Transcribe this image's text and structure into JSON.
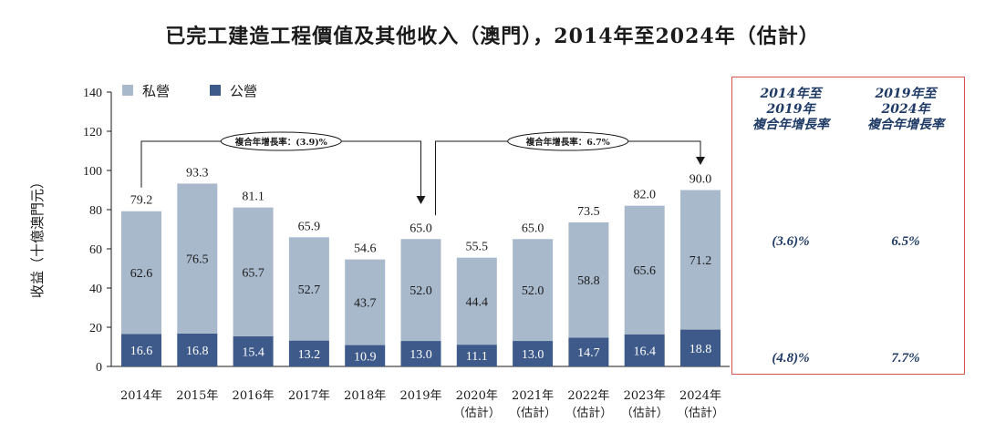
{
  "title": "已完工建造工程價值及其他收入（澳門），2014年至2024年（估計）",
  "chart_data": {
    "type": "bar",
    "stacked": true,
    "title": "已完工建造工程價值及其他收入（澳門），2014年至2024年（估計）",
    "ylabel": "收益（十億澳門元）",
    "xlabel": "",
    "ylim": [
      0,
      140
    ],
    "yticks": [
      0,
      20,
      40,
      60,
      80,
      100,
      120,
      140
    ],
    "categories": [
      {
        "year": "2014年",
        "note": ""
      },
      {
        "year": "2015年",
        "note": ""
      },
      {
        "year": "2016年",
        "note": ""
      },
      {
        "year": "2017年",
        "note": ""
      },
      {
        "year": "2018年",
        "note": ""
      },
      {
        "year": "2019年",
        "note": ""
      },
      {
        "year": "2020年",
        "note": "（估計）"
      },
      {
        "year": "2021年",
        "note": "（估計）"
      },
      {
        "year": "2022年",
        "note": "（估計）"
      },
      {
        "year": "2023年",
        "note": "（估計）"
      },
      {
        "year": "2024年",
        "note": "（估計）"
      }
    ],
    "series": [
      {
        "name": "公營",
        "color": "#3d5a8a",
        "values": [
          16.6,
          16.8,
          15.4,
          13.2,
          10.9,
          13.0,
          11.1,
          13.0,
          14.7,
          16.4,
          18.8
        ]
      },
      {
        "name": "私營",
        "color": "#a9b9cc",
        "values": [
          62.6,
          76.5,
          65.7,
          52.7,
          43.7,
          52.0,
          44.4,
          52.0,
          58.8,
          65.6,
          71.2
        ]
      }
    ],
    "totals": [
      79.2,
      93.3,
      81.1,
      65.9,
      54.6,
      65.0,
      55.5,
      65.0,
      73.5,
      82.0,
      90.0
    ],
    "legend": [
      {
        "name": "私營",
        "color": "#a9b9cc"
      },
      {
        "name": "公營",
        "color": "#3d5a8a"
      }
    ],
    "annotations": [
      {
        "text": "複合年增長率：(3.9)%",
        "from": "2014年",
        "to": "2019年"
      },
      {
        "text": "複合年增長率：6.7%",
        "from": "2019年",
        "to": "2024年"
      }
    ]
  },
  "cagr_panel": {
    "headers": [
      [
        "2014年至",
        "2019年",
        "複合年增長率"
      ],
      [
        "2019年至",
        "2024年",
        "複合年增長率"
      ]
    ],
    "rows": [
      [
        "(3.6)%",
        "6.5%"
      ],
      [
        "(4.8)%",
        "7.7%"
      ]
    ]
  }
}
